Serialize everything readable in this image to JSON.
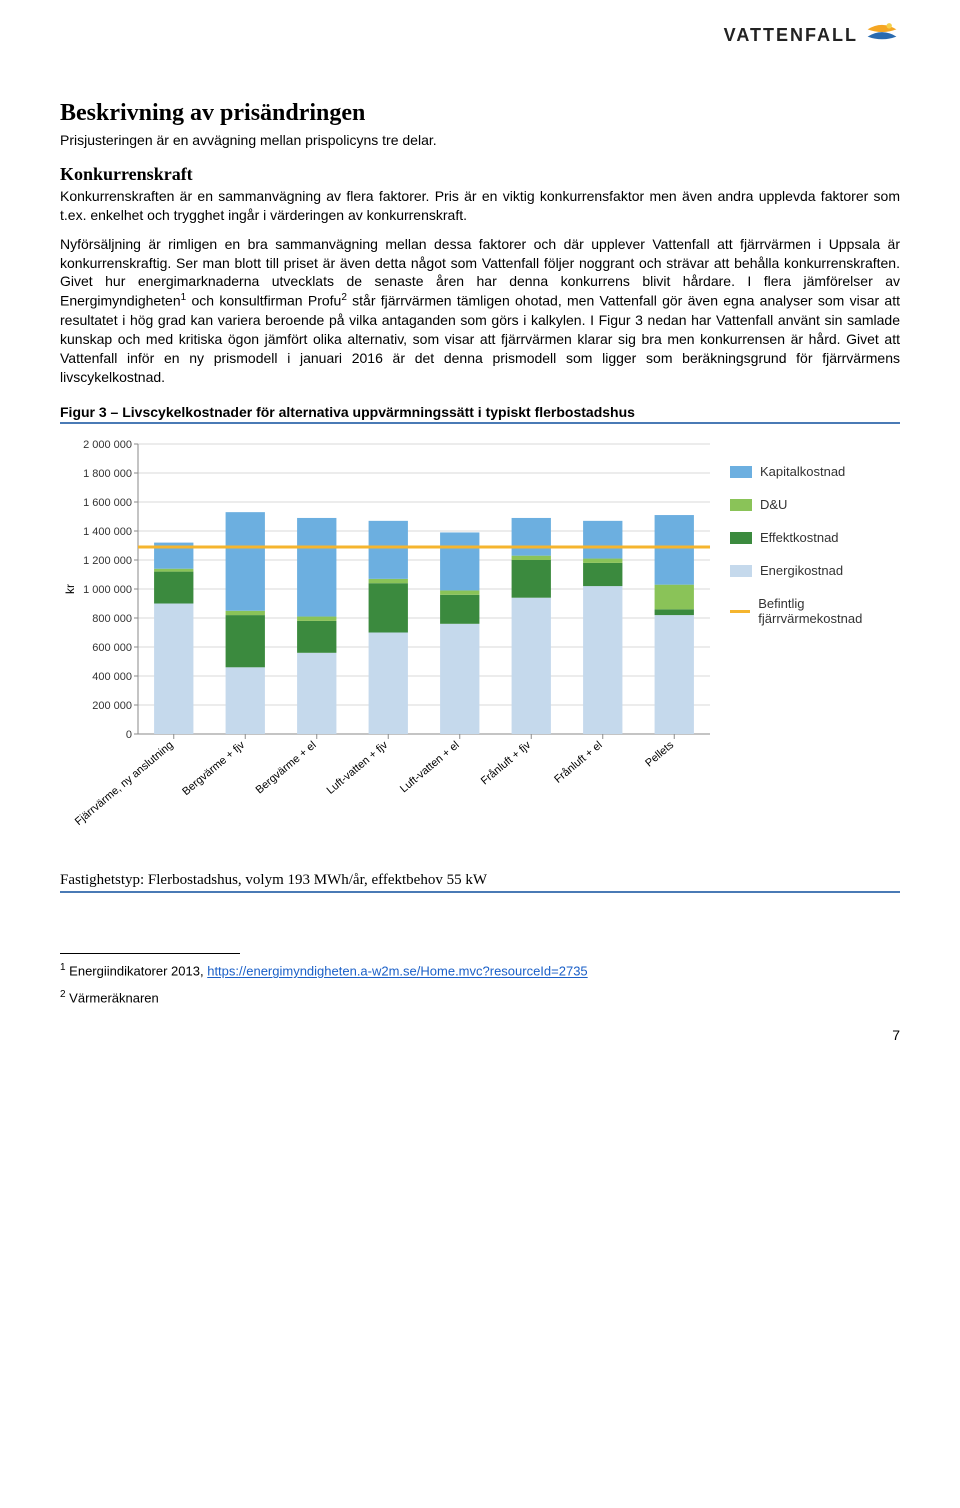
{
  "brand": {
    "name": "VATTENFALL"
  },
  "title": "Beskrivning av prisändringen",
  "intro": "Prisjusteringen är en avvägning mellan prispolicyns tre delar.",
  "section1": {
    "heading": "Konkurrenskraft",
    "p1": "Konkurrenskraften är en sammanvägning av flera faktorer. Pris är en viktig konkurrensfaktor men även andra upplevda faktorer som t.ex. enkelhet och trygghet ingår i värderingen av konkurrenskraft.",
    "p2a": "Nyförsäljning är rimligen en bra sammanvägning mellan dessa faktorer och där upplever Vattenfall att fjärrvärmen i Uppsala är konkurrenskraftig. Ser man blott till priset är även detta något som Vattenfall följer noggrant och strävar att behålla konkurrenskraften. Givet hur energimarknaderna utvecklats de senaste åren har denna konkurrens blivit hårdare. I flera jämförelser av Energimyndigheten",
    "p2b": " och konsultfirman Profu",
    "p2c": " står fjärrvärmen tämligen ohotad, men Vattenfall gör även egna analyser som visar att resultatet i hög grad kan variera beroende på vilka antaganden som görs i kalkylen. I Figur 3 nedan har Vattenfall använt sin samlade kunskap och med kritiska ögon jämfört olika alternativ, som visar att fjärrvärmen klarar sig bra men konkurrensen är hård. Givet att Vattenfall inför en ny prismodell i januari 2016 är det denna prismodell som ligger som beräkningsgrund för fjärrvärmens livscykelkostnad."
  },
  "figure": {
    "caption": "Figur 3 – Livscykelkostnader för alternativa uppvärmningssätt i typiskt flerbostadshus",
    "subcaption": "Fastighetstyp: Flerbostadshus, volym 193 MWh/år, effektbehov 55 kW"
  },
  "chart": {
    "type": "stacked-bar",
    "ylabel": "kr",
    "ylim": [
      0,
      2000000
    ],
    "ytick_step": 200000,
    "yticks": [
      "0",
      "200 000",
      "400 000",
      "600 000",
      "800 000",
      "1 000 000",
      "1 200 000",
      "1 400 000",
      "1 600 000",
      "1 800 000",
      "2 000 000"
    ],
    "categories": [
      "Fjärrvärme, ny anslutning",
      "Bergvärme + fjv",
      "Bergvärme + el",
      "Luft-vatten + fjv",
      "Luft-vatten + el",
      "Frånluft + fjv",
      "Frånluft + el",
      "Pellets"
    ],
    "stack_order": [
      "Energikostnad",
      "Effektkostnad",
      "D&U",
      "Kapitalkostnad"
    ],
    "series": {
      "Energikostnad": [
        900000,
        460000,
        560000,
        700000,
        760000,
        940000,
        1020000,
        820000
      ],
      "Effektkostnad": [
        220000,
        360000,
        220000,
        340000,
        200000,
        260000,
        160000,
        40000
      ],
      "D&U": [
        20000,
        30000,
        30000,
        30000,
        30000,
        30000,
        30000,
        170000
      ],
      "Kapitalkostnad": [
        180000,
        680000,
        680000,
        400000,
        400000,
        260000,
        260000,
        480000
      ]
    },
    "reference_line": {
      "label": "Befintlig fjärrvärmekostnad",
      "value": 1290000,
      "color": "#f5b52e"
    },
    "colors": {
      "Kapitalkostnad": "#6cafe0",
      "D&U": "#8ac358",
      "Effektkostnad": "#3b8a3e",
      "Energikostnad": "#c5d9ec",
      "grid": "#d8d8d8",
      "axis": "#8a8a8a",
      "background": "#ffffff"
    },
    "bar_width": 0.55,
    "label_fontsize": 11,
    "tick_fontsize": 11
  },
  "legend": [
    {
      "label": "Kapitalkostnad",
      "key": "Kapitalkostnad",
      "type": "box"
    },
    {
      "label": "D&U",
      "key": "D&U",
      "type": "box"
    },
    {
      "label": "Effektkostnad",
      "key": "Effektkostnad",
      "type": "box"
    },
    {
      "label": "Energikostnad",
      "key": "Energikostnad",
      "type": "box"
    },
    {
      "label": "Befintlig fjärrvärmekostnad",
      "key": "refline",
      "type": "line"
    }
  ],
  "footnotes": {
    "fn1_num": "1",
    "fn1_text_a": " Energiindikatorer 2013, ",
    "fn1_link": "https://energimyndigheten.a-w2m.se/Home.mvc?resourceId=2735",
    "fn2_num": "2",
    "fn2_text": " Värmeräknaren"
  },
  "page_number": "7"
}
